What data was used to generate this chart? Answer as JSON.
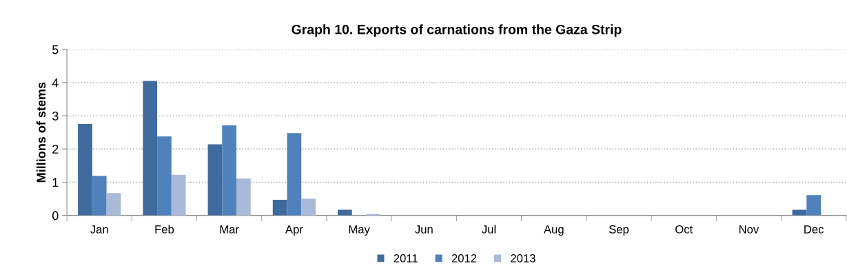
{
  "chart_data": {
    "type": "bar",
    "title": "Graph 10. Exports of carnations from the Gaza Strip",
    "ylabel": "Millions of stems",
    "categories": [
      "Jan",
      "Feb",
      "Mar",
      "Apr",
      "May",
      "Jun",
      "Jul",
      "Aug",
      "Sep",
      "Oct",
      "Nov",
      "Dec"
    ],
    "series": [
      {
        "name": "2011",
        "color": "#3f6a9e",
        "values": [
          2.75,
          4.05,
          2.14,
          0.47,
          0.17,
          0,
          0,
          0,
          0,
          0,
          0,
          0.17
        ]
      },
      {
        "name": "2012",
        "color": "#4f81bd",
        "values": [
          1.19,
          2.38,
          2.71,
          2.48,
          0,
          0,
          0,
          0,
          0,
          0,
          0,
          0.61
        ]
      },
      {
        "name": "2013",
        "color": "#a9b9d8",
        "values": [
          0.67,
          1.22,
          1.11,
          0.5,
          0.04,
          0,
          0,
          0,
          0,
          0,
          0,
          0
        ]
      }
    ],
    "ylim": [
      0,
      5
    ],
    "yticks": [
      0,
      1,
      2,
      3,
      4,
      5
    ],
    "grid": "y",
    "legend": "bottom"
  }
}
